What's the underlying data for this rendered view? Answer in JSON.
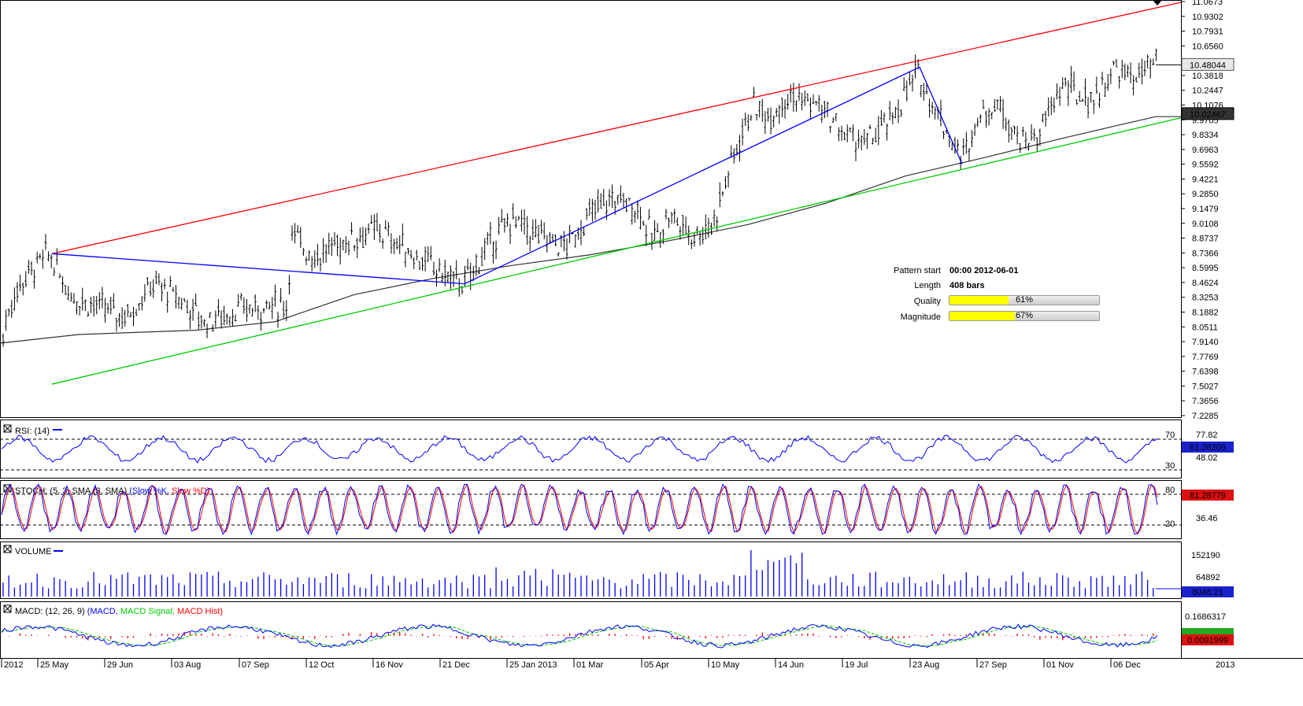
{
  "chart_data": {
    "type": "candlestick",
    "price_axis_ticks": [
      "11.0673",
      "10.9302",
      "10.7931",
      "10.6560",
      "10.3818",
      "10.2447",
      "10.1076",
      "9.9705",
      "9.8334",
      "9.6963",
      "9.5592",
      "9.4221",
      "9.2850",
      "9.1479",
      "9.0108",
      "8.8737",
      "8.7366",
      "8.5995",
      "8.4624",
      "8.3253",
      "8.1882",
      "8.0511",
      "7.9140",
      "7.7769",
      "7.6398",
      "7.5027",
      "7.3656",
      "7.2285"
    ],
    "price_range": [
      7.2285,
      11.0673
    ],
    "last_price": "10.48044",
    "ma_value": "10.02467",
    "x_labels": [
      "2012",
      "25 May",
      "29 Jun",
      "03 Aug",
      "07 Sep",
      "12 Oct",
      "16 Nov",
      "21 Dec",
      "25 Jan 2013",
      "01 Mar",
      "05 Apr",
      "10 May",
      "14 Jun",
      "19 Jul",
      "23 Aug",
      "27 Sep",
      "01 Nov",
      "06 Dec",
      "2013"
    ],
    "pattern": {
      "upper_line": {
        "start": 8.73,
        "end": 11.06
      },
      "lower_line": {
        "start": 7.52,
        "end": 9.99
      },
      "zigzag": [
        8.73,
        8.45,
        10.46,
        9.56
      ]
    },
    "indicators": {
      "rsi": {
        "title": "RSI: (14)",
        "levels": [
          "70",
          "30"
        ],
        "axis": "48.02",
        "axis_top": "77.82",
        "value": "61.28209"
      },
      "stoch": {
        "title": "STOCH: (5, 3, SMA (3, SMA)",
        "series_k": "(Slow %K,",
        "series_d": "Slow %D)",
        "levels": [
          "80",
          "20"
        ],
        "axis": "36.46",
        "value": "81.28779"
      },
      "volume": {
        "title": "VOLUME",
        "axis_top": "152190",
        "axis_mid": "64892",
        "value": "8048.21"
      },
      "macd": {
        "title": "MACD: (12, 26, 9)",
        "series": [
          "(MACD,",
          "MACD Signal,",
          "MACD Hist)"
        ],
        "axis": "0.1686317",
        "value": "0.0091999"
      }
    }
  },
  "pattern_info": {
    "start_label": "Pattern start",
    "start_value": "00:00 2012-06-01",
    "length_label": "Length",
    "length_value": "408 bars",
    "quality_label": "Quality",
    "quality_value": "61%",
    "quality_pct": 61,
    "magnitude_label": "Magnitude",
    "magnitude_value": "67%",
    "magnitude_pct": 67
  },
  "colors": {
    "upper_line": "#ff0000",
    "lower_line": "#00cc00",
    "zigzag": "#0000ff",
    "ma": "#333333",
    "candles": "#000000",
    "rsi": "#0000ff",
    "stoch_k": "#0000ff",
    "stoch_d": "#ff0000",
    "volume": "#0000ff",
    "macd": "#0000ff",
    "macd_signal": "#00cc00",
    "macd_hist": "#ff0000",
    "quality_bar": "#ffff00"
  }
}
